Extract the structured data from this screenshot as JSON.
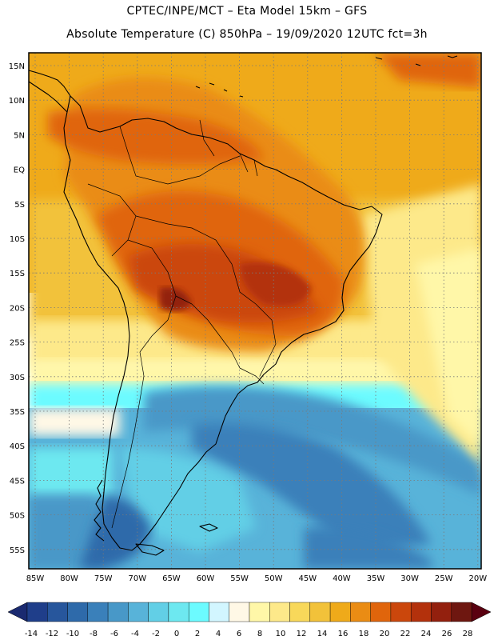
{
  "header": {
    "line1": "CPTEC/INPE/MCT –  Eta Model 15km – GFS",
    "line2": "Absolute Temperature (C) 850hPa – 19/09/2020 12UTC fct=3h"
  },
  "map": {
    "lat_labels": [
      "15N",
      "10N",
      "5N",
      "EQ",
      "5S",
      "10S",
      "15S",
      "20S",
      "25S",
      "30S",
      "35S",
      "40S",
      "45S",
      "50S",
      "55S"
    ],
    "lon_labels": [
      "85W",
      "80W",
      "75W",
      "70W",
      "65W",
      "60W",
      "55W",
      "50W",
      "45W",
      "40W",
      "35W",
      "30W",
      "25W",
      "20W"
    ]
  },
  "colorbar": {
    "labels": [
      "-14",
      "-12",
      "-10",
      "-8",
      "-6",
      "-4",
      "-2",
      "0",
      "2",
      "4",
      "6",
      "8",
      "10",
      "12",
      "14",
      "16",
      "18",
      "20",
      "22",
      "24",
      "26",
      "28"
    ],
    "colors": [
      "#1f3e8a",
      "#27569c",
      "#2e6aaa",
      "#3a80ba",
      "#4898c8",
      "#58b3d9",
      "#62cfe6",
      "#6de8f0",
      "#6cfbff",
      "#d2f6ff",
      "#fff8e6",
      "#fff7a8",
      "#fde98a",
      "#f8d85a",
      "#f2c23a",
      "#efaa1a",
      "#ea8c14",
      "#e0650c",
      "#cb470c",
      "#b3310c",
      "#93200e",
      "#6e1710"
    ],
    "left_arrow_color": "#1a2a70",
    "right_arrow_color": "#5a0010"
  }
}
